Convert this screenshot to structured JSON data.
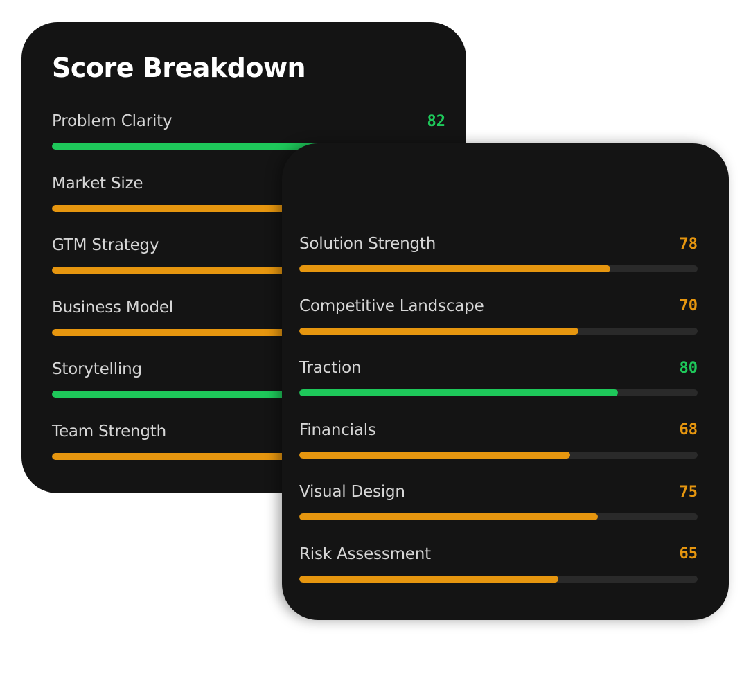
{
  "colors": {
    "high": "#1ec85a",
    "mid": "#e6960f"
  },
  "back_card": {
    "title": "Score Breakdown",
    "metrics": [
      {
        "label": "Problem Clarity",
        "score": "82",
        "level": "high",
        "fraction": 0.82
      },
      {
        "label": "Market Size",
        "score": "",
        "level": "mid",
        "fraction": null
      },
      {
        "label": "GTM Strategy",
        "score": "",
        "level": "mid",
        "fraction": null
      },
      {
        "label": "Business Model",
        "score": "",
        "level": "mid",
        "fraction": null
      },
      {
        "label": "Storytelling",
        "score": "",
        "level": "high",
        "fraction": null
      },
      {
        "label": "Team Strength",
        "score": "",
        "level": "mid",
        "fraction": null
      }
    ]
  },
  "front_card": {
    "metrics": [
      {
        "label": "Solution Strength",
        "score": "78",
        "level": "mid",
        "fraction": 0.78
      },
      {
        "label": "Competitive Landscape",
        "score": "70",
        "level": "mid",
        "fraction": 0.7
      },
      {
        "label": "Traction",
        "score": "80",
        "level": "high",
        "fraction": 0.8
      },
      {
        "label": "Financials",
        "score": "68",
        "level": "mid",
        "fraction": 0.68
      },
      {
        "label": "Visual Design",
        "score": "75",
        "level": "mid",
        "fraction": 0.75
      },
      {
        "label": "Risk Assessment",
        "score": "65",
        "level": "mid",
        "fraction": 0.65
      }
    ]
  }
}
